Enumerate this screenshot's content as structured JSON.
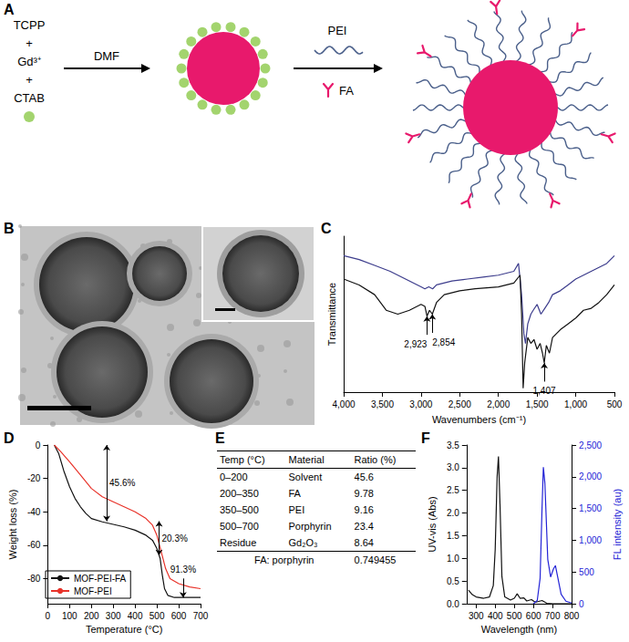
{
  "panel_labels": [
    "A",
    "B",
    "C",
    "D",
    "E",
    "F"
  ],
  "diagram": {
    "reagents": [
      "TCPP",
      "+",
      "Gd³⁺",
      "+",
      "CTAB"
    ],
    "step1": "DMF",
    "step2": [
      "PEI",
      "FA"
    ]
  },
  "table": {
    "header": [
      "Temp (°C)",
      "Material",
      "Ratio (%)"
    ],
    "rows": [
      [
        "0–200",
        "Solvent",
        "45.6"
      ],
      [
        "200–350",
        "FA",
        "9.78"
      ],
      [
        "350–500",
        "PEI",
        "9.16"
      ],
      [
        "500–700",
        "Porphyrin",
        "23.4"
      ],
      [
        "Residue",
        "Gd₂O₃",
        "8.64"
      ]
    ],
    "footer": [
      "FA: porphyrin",
      "0.749455"
    ]
  },
  "chart_data": [
    {
      "type": "line",
      "x_label": "Wavenumbers (cm⁻¹)",
      "y_label": "Transmittance",
      "xlim": [
        4000,
        500
      ],
      "xticks": [
        {
          "value": 4000,
          "label": "4,000"
        },
        {
          "value": 3500,
          "label": "3,500"
        },
        {
          "value": 3000,
          "label": "3,000"
        },
        {
          "value": 2500,
          "label": "2,500"
        },
        {
          "value": 2000,
          "label": "2,000"
        },
        {
          "value": 1500,
          "label": "1,500"
        },
        {
          "value": 1000,
          "label": "1,000"
        },
        500
      ],
      "ylim": [
        20,
        100
      ],
      "tick_labels": "x",
      "grid": false,
      "series": [
        {
          "color": "#3c3c8c",
          "x": [
            4000,
            3800,
            3600,
            3400,
            3200,
            3000,
            2950,
            2900,
            2850,
            2800,
            2600,
            2400,
            2200,
            2000,
            1800,
            1740,
            1700,
            1670,
            1650,
            1620,
            1580,
            1550,
            1500,
            1450,
            1400,
            1350,
            1300,
            1200,
            1100,
            1000,
            900,
            800,
            700,
            600,
            500
          ],
          "values": [
            90,
            88,
            85,
            82,
            78,
            74,
            73,
            74,
            73,
            75,
            77,
            78,
            79,
            80,
            82,
            86,
            70,
            50,
            45,
            55,
            60,
            62,
            65,
            60,
            63,
            66,
            70,
            72,
            75,
            78,
            80,
            82,
            84,
            86,
            90
          ]
        },
        {
          "color": "#111111",
          "x": [
            4000,
            3800,
            3600,
            3450,
            3300,
            3150,
            3000,
            2950,
            2923,
            2890,
            2854,
            2800,
            2700,
            2500,
            2300,
            2000,
            1800,
            1720,
            1700,
            1680,
            1660,
            1620,
            1580,
            1540,
            1500,
            1460,
            1430,
            1407,
            1380,
            1340,
            1300,
            1250,
            1200,
            1100,
            1000,
            900,
            800,
            700,
            600,
            500
          ],
          "values": [
            78,
            75,
            70,
            62,
            60,
            62,
            65,
            64,
            59,
            62,
            60,
            66,
            70,
            72,
            73,
            74,
            76,
            80,
            60,
            22,
            35,
            48,
            45,
            47,
            42,
            45,
            40,
            35,
            44,
            40,
            48,
            50,
            52,
            55,
            58,
            62,
            63,
            66,
            70,
            75
          ]
        }
      ],
      "annotations": [
        {
          "text": "2,923",
          "x": 2923,
          "y": 59
        },
        {
          "text": "2,854",
          "x": 2854,
          "y": 60
        },
        {
          "text": "1,407",
          "x": 1407,
          "y": 35
        }
      ]
    },
    {
      "type": "line",
      "x_label": "Temperature (°C)",
      "y_label": "Weight loss (%)",
      "xlim": [
        0,
        700
      ],
      "xticks": [
        0,
        100,
        200,
        300,
        400,
        500,
        600,
        700
      ],
      "ylim": [
        -95,
        0
      ],
      "yticks": [
        0,
        -20,
        -40,
        -60,
        -80
      ],
      "grid": false,
      "legend": "lower left",
      "series": [
        {
          "name": "MOF-PEI-FA",
          "color": "#111111",
          "x": [
            30,
            50,
            75,
            100,
            125,
            150,
            175,
            200,
            250,
            300,
            350,
            400,
            450,
            480,
            500,
            515,
            525,
            535,
            550,
            580,
            700
          ],
          "values": [
            0,
            -5,
            -16,
            -25,
            -32,
            -37,
            -41,
            -44,
            -46,
            -47.5,
            -49,
            -51,
            -54,
            -57,
            -62,
            -68,
            -78,
            -86,
            -90,
            -91.3,
            -91.3
          ]
        },
        {
          "name": "MOF-PEI",
          "color": "#e8332a",
          "x": [
            30,
            60,
            100,
            150,
            200,
            250,
            300,
            350,
            400,
            450,
            480,
            500,
            520,
            540,
            560,
            600,
            650,
            700
          ],
          "values": [
            0,
            -4,
            -10,
            -18,
            -26,
            -31,
            -34,
            -37,
            -40,
            -44,
            -48,
            -54,
            -64,
            -74,
            -80,
            -83,
            -85,
            -86
          ]
        }
      ],
      "annotations": [
        {
          "text": "45.6%",
          "x": 270,
          "y": [
            0,
            -45.6
          ]
        },
        {
          "text": "20.3%",
          "x": 510,
          "y": [
            -45.6,
            -65.9
          ]
        },
        {
          "text": "91.3%",
          "x": 620,
          "y": -91.3
        }
      ]
    },
    {
      "type": "line",
      "x_label": "Wavelength (nm)",
      "y_label": "UV-vis (Abs)",
      "y2_label": "FL intensity (au)",
      "xlim": [
        250,
        800
      ],
      "xticks": [
        300,
        400,
        500,
        600,
        700,
        800
      ],
      "ylim": [
        0,
        3.5
      ],
      "yticks": [
        {
          "value": 0,
          "label": "0.0"
        },
        0.5,
        {
          "value": 1,
          "label": "1.0"
        },
        1.5,
        {
          "value": 2,
          "label": "2.0"
        },
        2.5,
        {
          "value": 3,
          "label": "3.0"
        },
        3.5
      ],
      "y2lim": [
        0,
        2500
      ],
      "y2ticks": [
        0,
        500,
        {
          "value": 1000,
          "label": "1,000"
        },
        {
          "value": 1500,
          "label": "1,500"
        },
        {
          "value": 2000,
          "label": "2,000"
        },
        {
          "value": 2500,
          "label": "2,500"
        }
      ],
      "grid": false,
      "series": [
        {
          "color": "#111111",
          "x": [
            260,
            280,
            300,
            340,
            370,
            390,
            400,
            410,
            417,
            425,
            435,
            450,
            480,
            500,
            515,
            530,
            550,
            565,
            590,
            610,
            645,
            670,
            700,
            800
          ],
          "values": [
            0.3,
            0.2,
            0.15,
            0.12,
            0.15,
            0.4,
            1.2,
            2.8,
            3.25,
            2.2,
            0.6,
            0.15,
            0.08,
            0.12,
            0.22,
            0.12,
            0.13,
            0.06,
            0.09,
            0.03,
            0.07,
            0.01,
            0,
            0
          ]
        },
        {
          "color": "#2323d6",
          "axis": "y2",
          "x": [
            600,
            620,
            635,
            645,
            652,
            660,
            675,
            690,
            705,
            715,
            725,
            745,
            770,
            800
          ],
          "values": [
            0,
            50,
            400,
            1500,
            2150,
            1900,
            700,
            420,
            550,
            600,
            450,
            150,
            40,
            10
          ]
        }
      ]
    }
  ]
}
